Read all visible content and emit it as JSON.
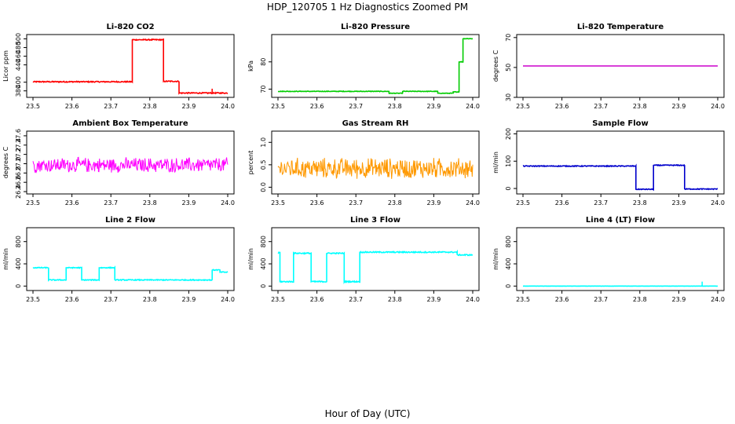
{
  "figure": {
    "title": "HDP_120705  1 Hz Diagnostics Zoomed PM",
    "xlabel": "Hour of Day (UTC)"
  },
  "chart_data": [
    {
      "type": "line",
      "title": "Li-820 CO2",
      "ylabel": "Licor ppm",
      "color": "#ff0000",
      "xlim": [
        23.5,
        24.0
      ],
      "ylim": [
        365,
        510
      ],
      "xticks": [
        "23.5",
        "23.6",
        "23.7",
        "23.8",
        "23.9",
        "24.0"
      ],
      "yticks": [
        380,
        400,
        440,
        460,
        480,
        500
      ],
      "series": [
        {
          "segments": [
            {
              "x": [
                23.5,
                23.755
              ],
              "y": 401
            },
            {
              "x": [
                23.755,
                23.835
              ],
              "y": 498
            },
            {
              "x": [
                23.835,
                23.875
              ],
              "y": 402
            },
            {
              "x": [
                23.875,
                24.0
              ],
              "y": 375
            }
          ],
          "noise": 1.2,
          "spike": {
            "x": 23.96,
            "y": 385
          }
        }
      ]
    },
    {
      "type": "line",
      "title": "Li-820 Pressure",
      "ylabel": "kPa",
      "color": "#00cc00",
      "xlim": [
        23.5,
        24.0
      ],
      "ylim": [
        67,
        90
      ],
      "xticks": [
        "23.5",
        "23.6",
        "23.7",
        "23.8",
        "23.9",
        "24.0"
      ],
      "yticks": [
        70,
        80
      ],
      "series": [
        {
          "segments": [
            {
              "x": [
                23.5,
                23.785
              ],
              "y": 69.2
            },
            {
              "x": [
                23.785,
                23.82
              ],
              "y": 68.5
            },
            {
              "x": [
                23.82,
                23.91
              ],
              "y": 69.2
            },
            {
              "x": [
                23.91,
                23.95
              ],
              "y": 68.5
            },
            {
              "x": [
                23.95,
                23.965
              ],
              "y": 69.0
            },
            {
              "x": [
                23.965,
                23.975
              ],
              "y": 80
            },
            {
              "x": [
                23.975,
                24.0
              ],
              "y": 88.5
            }
          ],
          "noise": 0.1
        }
      ]
    },
    {
      "type": "line",
      "title": "Li-820 Temperature",
      "ylabel": "degrees C",
      "color": "#cc00cc",
      "xlim": [
        23.5,
        24.0
      ],
      "ylim": [
        30,
        72
      ],
      "xticks": [
        "23.5",
        "23.6",
        "23.7",
        "23.8",
        "23.9",
        "24.0"
      ],
      "yticks": [
        30,
        50,
        70
      ],
      "series": [
        {
          "segments": [
            {
              "x": [
                23.5,
                24.0
              ],
              "y": 51
            }
          ],
          "noise": 0
        }
      ]
    },
    {
      "type": "line",
      "title": "Ambient Box Temperature",
      "ylabel": "degrees C",
      "color": "#ff00ff",
      "xlim": [
        23.5,
        24.0
      ],
      "ylim": [
        26.35,
        27.7
      ],
      "xticks": [
        "23.5",
        "23.6",
        "23.7",
        "23.8",
        "23.9",
        "24.0"
      ],
      "yticks": [
        26.4,
        26.6,
        26.8,
        27.0,
        27.2,
        27.4,
        27.6
      ],
      "series": [
        {
          "segments": [
            {
              "x": [
                23.5,
                24.0
              ],
              "y": 26.97
            }
          ],
          "noise": 0.14,
          "dense": true
        }
      ]
    },
    {
      "type": "line",
      "title": "Gas Stream RH",
      "ylabel": "percent",
      "color": "#ff9900",
      "xlim": [
        23.5,
        24.0
      ],
      "ylim": [
        -0.15,
        1.25
      ],
      "xticks": [
        "23.5",
        "23.6",
        "23.7",
        "23.8",
        "23.9",
        "24.0"
      ],
      "yticks": [
        0.0,
        0.5,
        1.0
      ],
      "series": [
        {
          "segments": [
            {
              "x": [
                23.5,
                24.0
              ],
              "y": 0.42
            }
          ],
          "noise": 0.2,
          "dense": true
        }
      ]
    },
    {
      "type": "line",
      "title": "Sample Flow",
      "ylabel": "ml/min",
      "color": "#0000cc",
      "xlim": [
        23.5,
        24.0
      ],
      "ylim": [
        -20,
        210
      ],
      "xticks": [
        "23.5",
        "23.6",
        "23.7",
        "23.8",
        "23.9",
        "24.0"
      ],
      "yticks": [
        0,
        100,
        200
      ],
      "series": [
        {
          "segments": [
            {
              "x": [
                23.5,
                23.79
              ],
              "y": 82
            },
            {
              "x": [
                23.79,
                23.835
              ],
              "y": -3
            },
            {
              "x": [
                23.835,
                23.915
              ],
              "y": 85
            },
            {
              "x": [
                23.915,
                24.0
              ],
              "y": -2
            }
          ],
          "noise": 1.5
        }
      ]
    },
    {
      "type": "line",
      "title": "Line 2 Flow",
      "ylabel": "ml/min",
      "color": "#00ffff",
      "xlim": [
        23.5,
        24.0
      ],
      "ylim": [
        -80,
        1050
      ],
      "xticks": [
        "23.5",
        "23.6",
        "23.7",
        "23.8",
        "23.9",
        "24.0"
      ],
      "yticks": [
        0,
        400,
        800
      ],
      "series": [
        {
          "segments": [
            {
              "x": [
                23.5,
                23.54
              ],
              "y": 330
            },
            {
              "x": [
                23.54,
                23.585
              ],
              "y": 110
            },
            {
              "x": [
                23.585,
                23.625
              ],
              "y": 330
            },
            {
              "x": [
                23.625,
                23.67
              ],
              "y": 110
            },
            {
              "x": [
                23.67,
                23.71
              ],
              "y": 330
            },
            {
              "x": [
                23.71,
                23.96
              ],
              "y": 110
            },
            {
              "x": [
                23.96,
                23.98
              ],
              "y": 290
            },
            {
              "x": [
                23.98,
                24.0
              ],
              "y": 250
            }
          ],
          "noise": 8
        }
      ]
    },
    {
      "type": "line",
      "title": "Line 3 Flow",
      "ylabel": "ml/min",
      "color": "#00ffff",
      "xlim": [
        23.5,
        24.0
      ],
      "ylim": [
        -80,
        1050
      ],
      "xticks": [
        "23.5",
        "23.6",
        "23.7",
        "23.8",
        "23.9",
        "24.0"
      ],
      "yticks": [
        0,
        400,
        800
      ],
      "series": [
        {
          "segments": [
            {
              "x": [
                23.5,
                23.505
              ],
              "y": 600
            },
            {
              "x": [
                23.505,
                23.54
              ],
              "y": 80
            },
            {
              "x": [
                23.54,
                23.585
              ],
              "y": 590
            },
            {
              "x": [
                23.585,
                23.625
              ],
              "y": 80
            },
            {
              "x": [
                23.625,
                23.67
              ],
              "y": 590
            },
            {
              "x": [
                23.67,
                23.71
              ],
              "y": 80
            },
            {
              "x": [
                23.71,
                23.96
              ],
              "y": 610
            },
            {
              "x": [
                23.96,
                24.0
              ],
              "y": 560
            }
          ],
          "noise": 10
        }
      ]
    },
    {
      "type": "line",
      "title": "Line 4 (LT) Flow",
      "ylabel": "ml/min",
      "color": "#00ffff",
      "xlim": [
        23.5,
        24.0
      ],
      "ylim": [
        -80,
        1050
      ],
      "xticks": [
        "23.5",
        "23.6",
        "23.7",
        "23.8",
        "23.9",
        "24.0"
      ],
      "yticks": [
        0,
        400,
        800
      ],
      "series": [
        {
          "segments": [
            {
              "x": [
                23.5,
                24.0
              ],
              "y": 0
            }
          ],
          "noise": 1,
          "spike": {
            "x": 23.96,
            "y": 80
          }
        }
      ]
    }
  ]
}
